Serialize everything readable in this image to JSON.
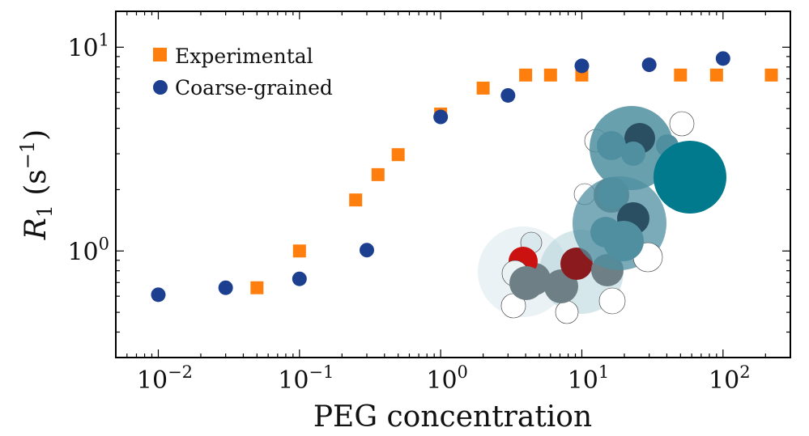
{
  "chart_data": {
    "type": "scatter",
    "xlabel": "PEG concentration",
    "ylabel": "R1 (s−1)",
    "ylabel_parts": {
      "symbol": "R",
      "subscript": "1",
      "open": " (s",
      "superscript": "−1",
      "close": ")"
    },
    "x_scale": "log",
    "y_scale": "log",
    "xlim": [
      0.005,
      300
    ],
    "ylim": [
      0.3,
      15
    ],
    "x_ticks": [
      {
        "value": 0.01,
        "base": "10",
        "exp": "−2"
      },
      {
        "value": 0.1,
        "base": "10",
        "exp": "−1"
      },
      {
        "value": 1,
        "base": "10",
        "exp": "0"
      },
      {
        "value": 10,
        "base": "10",
        "exp": "1"
      },
      {
        "value": 100,
        "base": "10",
        "exp": "2"
      }
    ],
    "y_ticks": [
      {
        "value": 1,
        "base": "10",
        "exp": "0"
      },
      {
        "value": 10,
        "base": "10",
        "exp": "1"
      }
    ],
    "legend_position": "top-left",
    "grid": false,
    "series": [
      {
        "name": "Experimental",
        "marker": "square",
        "color": "#ff7f0e",
        "x": [
          0.05,
          0.1,
          0.25,
          0.36,
          0.5,
          1.0,
          2.0,
          4.0,
          6.0,
          10.0,
          50.0,
          90.0,
          220.0
        ],
        "y": [
          0.66,
          1.0,
          1.78,
          2.37,
          2.97,
          4.7,
          6.3,
          7.3,
          7.3,
          7.3,
          7.3,
          7.3,
          7.3
        ]
      },
      {
        "name": "Coarse-grained",
        "marker": "circle",
        "color": "#1c3f8f",
        "x": [
          0.01,
          0.03,
          0.1,
          0.3,
          1.0,
          3.0,
          10.0,
          30.0,
          100.0
        ],
        "y": [
          0.61,
          0.66,
          0.73,
          1.01,
          4.55,
          5.8,
          8.1,
          8.2,
          8.8
        ]
      }
    ]
  },
  "illustration": {
    "name": "crowded-molecules-illustration",
    "colors": [
      "#007a8c",
      "#4f8fa0",
      "#2a4f63",
      "#a3c9d3",
      "#8b1a1f",
      "#cc1111",
      "#ffffff",
      "#d9e8ec",
      "#6e7f86"
    ]
  }
}
